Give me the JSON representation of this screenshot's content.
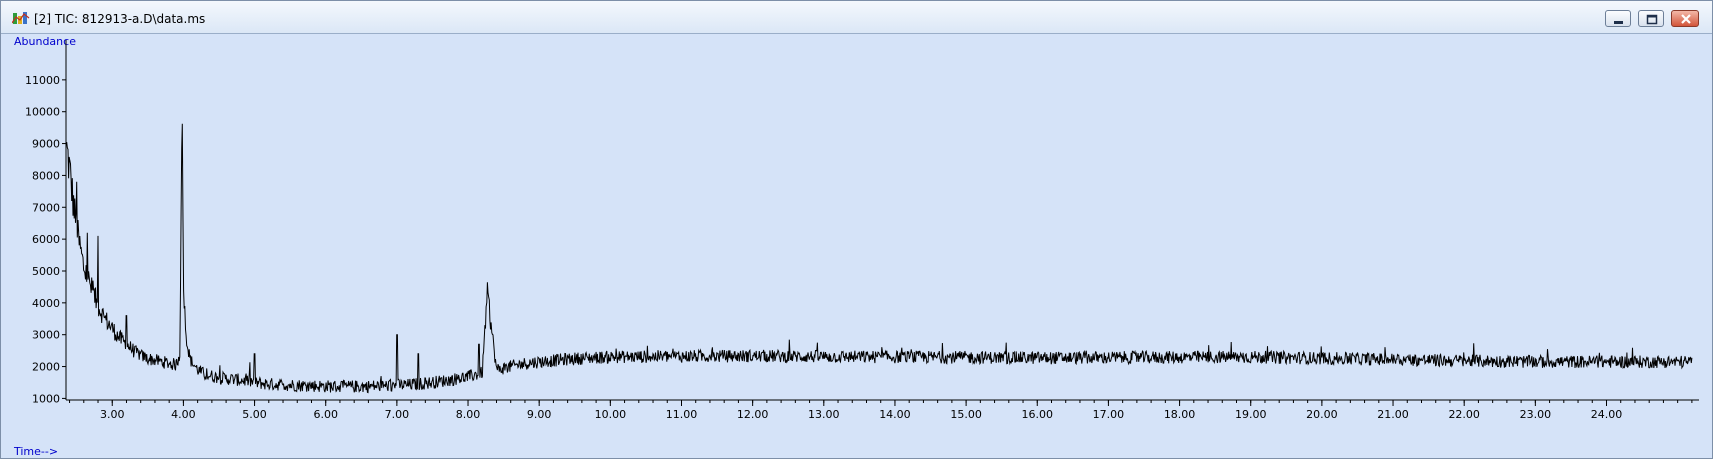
{
  "window": {
    "title": "[2] TIC: 812913-a.D\\data.ms",
    "controls": [
      "minimize-icon",
      "maximize-icon",
      "close-icon"
    ]
  },
  "colors": {
    "plot_background": "#d5e3f8",
    "trace": "#000000",
    "axis_label": "#0000cc"
  },
  "chart_data": {
    "type": "line",
    "title": "",
    "ylabel": "Abundance",
    "xlabel": "Time-->",
    "xlim": [
      2.35,
      25.3
    ],
    "ylim": [
      950,
      12000
    ],
    "y_ticks": [
      "1000",
      "2000",
      "3000",
      "4000",
      "5000",
      "6000",
      "7000",
      "8000",
      "9000",
      "10000",
      "11000"
    ],
    "x_ticks": [
      "3.00",
      "4.00",
      "5.00",
      "6.00",
      "7.00",
      "8.00",
      "9.00",
      "10.00",
      "11.00",
      "12.00",
      "13.00",
      "14.00",
      "15.00",
      "16.00",
      "17.00",
      "18.00",
      "19.00",
      "20.00",
      "21.00",
      "22.00",
      "23.00",
      "24.00"
    ],
    "series": [
      {
        "x": [
          2.36,
          2.4,
          2.45,
          2.5,
          2.55,
          2.6,
          2.7,
          2.8,
          2.9,
          3.0,
          3.1,
          3.2,
          3.3,
          3.4,
          3.5,
          3.6,
          3.7,
          3.8,
          3.9,
          3.95,
          3.98,
          4.0,
          4.03,
          4.06,
          4.1,
          4.2,
          4.3,
          4.5,
          4.7,
          4.9,
          5.0,
          5.2,
          5.5,
          5.8,
          6.0,
          6.3,
          6.6,
          6.9,
          7.2,
          7.5,
          7.8,
          8.0,
          8.2,
          8.27,
          8.4,
          8.6,
          8.8,
          9.0,
          9.5,
          10.0,
          11.0,
          12.0,
          13.0,
          14.0,
          15.0,
          16.0,
          17.0,
          18.0,
          19.0,
          20.0,
          21.0,
          22.0,
          23.0,
          24.0,
          25.2
        ],
        "y": [
          8800,
          8200,
          7200,
          6300,
          5700,
          5100,
          4500,
          3900,
          3500,
          3200,
          2900,
          2700,
          2500,
          2350,
          2250,
          2200,
          2150,
          2100,
          2050,
          2400,
          10500,
          4500,
          3300,
          2600,
          2200,
          1900,
          1750,
          1650,
          1600,
          1550,
          1500,
          1450,
          1420,
          1400,
          1380,
          1370,
          1380,
          1400,
          1430,
          1500,
          1600,
          1680,
          1800,
          4300,
          1900,
          2000,
          2100,
          2150,
          2250,
          2300,
          2320,
          2330,
          2310,
          2300,
          2290,
          2270,
          2280,
          2290,
          2300,
          2260,
          2220,
          2180,
          2150,
          2150,
          2150
        ]
      }
    ],
    "grid": false,
    "legend": "none"
  }
}
